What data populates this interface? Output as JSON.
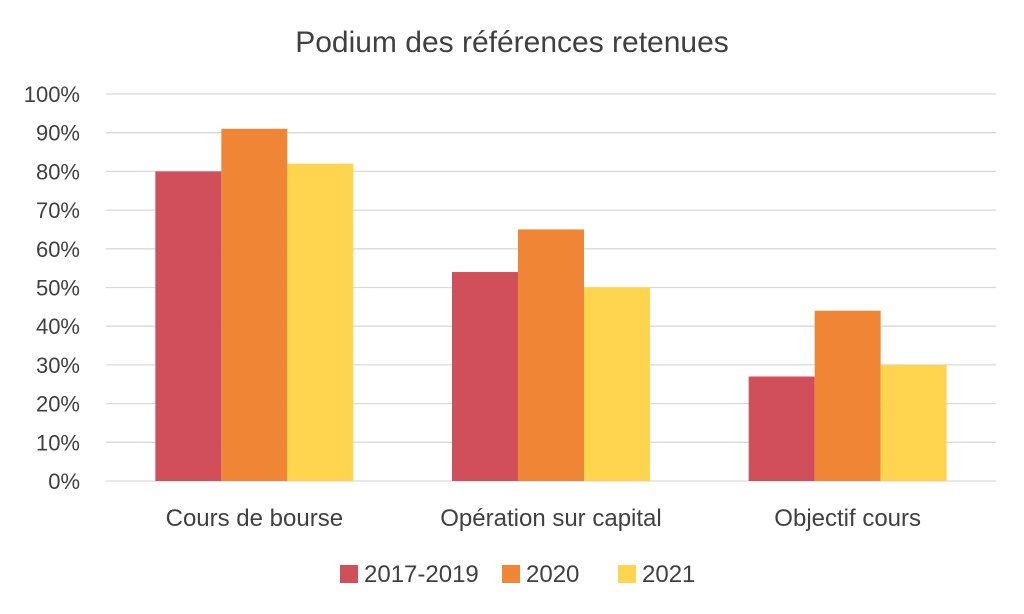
{
  "chart_data": {
    "type": "bar",
    "title": "Podium des références retenues",
    "categories": [
      "Cours de bourse",
      "Opération sur capital",
      "Objectif cours"
    ],
    "series": [
      {
        "name": "2017-2019",
        "color": "#D14F5B",
        "values": [
          80,
          54,
          27
        ]
      },
      {
        "name": "2020",
        "color": "#F08535",
        "values": [
          91,
          65,
          44
        ]
      },
      {
        "name": "2021",
        "color": "#FFD54F",
        "values": [
          82,
          50,
          30
        ]
      }
    ],
    "ylim": [
      0,
      100
    ],
    "yticks": [
      "0%",
      "10%",
      "20%",
      "30%",
      "40%",
      "50%",
      "60%",
      "70%",
      "80%",
      "90%",
      "100%"
    ],
    "grid": true,
    "legend_position": "bottom"
  }
}
